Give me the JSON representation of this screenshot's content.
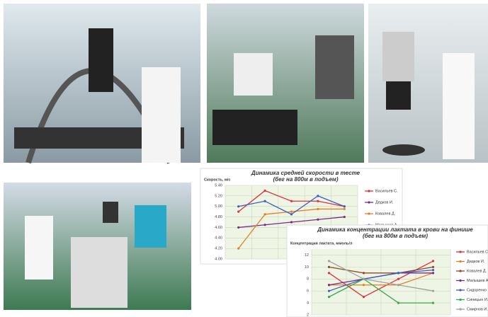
{
  "chart_data": [
    {
      "type": "line",
      "title": "Динамика средней скорости в тесте",
      "subtitle": "(бег на 800м в подъем)",
      "y_label": "Скорость, м/с",
      "categories": [
        null,
        null,
        null,
        null,
        null
      ],
      "series": [
        {
          "name": "Васильев С.",
          "color": "#e0303a",
          "values": [
            4.9,
            5.3,
            5.1,
            5.1,
            5.0
          ]
        },
        {
          "name": "Дедков И.",
          "color": "#7a2a8c",
          "values": [
            4.6,
            4.65,
            4.7,
            4.75,
            4.8
          ]
        },
        {
          "name": "Ковалев Д.",
          "color": "#e67e22",
          "values": [
            4.2,
            4.85,
            4.9,
            4.95,
            4.95
          ]
        },
        {
          "name": "Малышев А.",
          "color": "#3b5fc0",
          "values": [
            5.0,
            5.1,
            4.85,
            5.2,
            5.0
          ]
        }
      ],
      "ylim": [
        4.0,
        5.4
      ],
      "yticks": [
        {
          "value": 4.0,
          "label": "4.00"
        },
        {
          "value": 4.2,
          "label": "4.20"
        },
        {
          "value": 4.4,
          "label": "4.40"
        },
        {
          "value": 4.6,
          "label": "4.60"
        },
        {
          "value": 4.8,
          "label": "4.80"
        },
        {
          "value": 5.0,
          "label": "5.00"
        },
        {
          "value": 5.2,
          "label": "5.20"
        },
        {
          "value": 5.4,
          "label": "5.40"
        }
      ],
      "grid": true
    },
    {
      "type": "line",
      "title": "Динамика концентрации лактата в крови на финише",
      "subtitle": "(бег на 800м в подъем)",
      "y_label": "Концентрация лактата, ммоль/л",
      "categories": [
        null,
        null,
        null,
        null
      ],
      "series": [
        {
          "name": "Васильев С.",
          "color": "#e0303a",
          "values": [
            9,
            5,
            8,
            11
          ]
        },
        {
          "name": "Дедков И.",
          "color": "#e67e22",
          "values": [
            7,
            7,
            7,
            9
          ]
        },
        {
          "name": "Ковалев Д.",
          "color": "#8e4a2a",
          "values": [
            10,
            9,
            9,
            10
          ]
        },
        {
          "name": "Малышев А.",
          "color": "#7a2a8c",
          "values": [
            7,
            8,
            9,
            9
          ]
        },
        {
          "name": "Сидоренко",
          "color": "#3b5fc0",
          "values": [
            6,
            8,
            9,
            9.5
          ]
        },
        {
          "name": "Синицын И.",
          "color": "#3aa84a",
          "values": [
            5,
            8,
            4,
            4
          ]
        },
        {
          "name": "Смирнов И.",
          "color": "#a0a0a0",
          "values": [
            11,
            8,
            7,
            6
          ]
        }
      ],
      "ylim": [
        2,
        13
      ],
      "yticks": [
        2,
        4,
        6,
        8,
        10,
        12
      ],
      "grid": true
    }
  ]
}
